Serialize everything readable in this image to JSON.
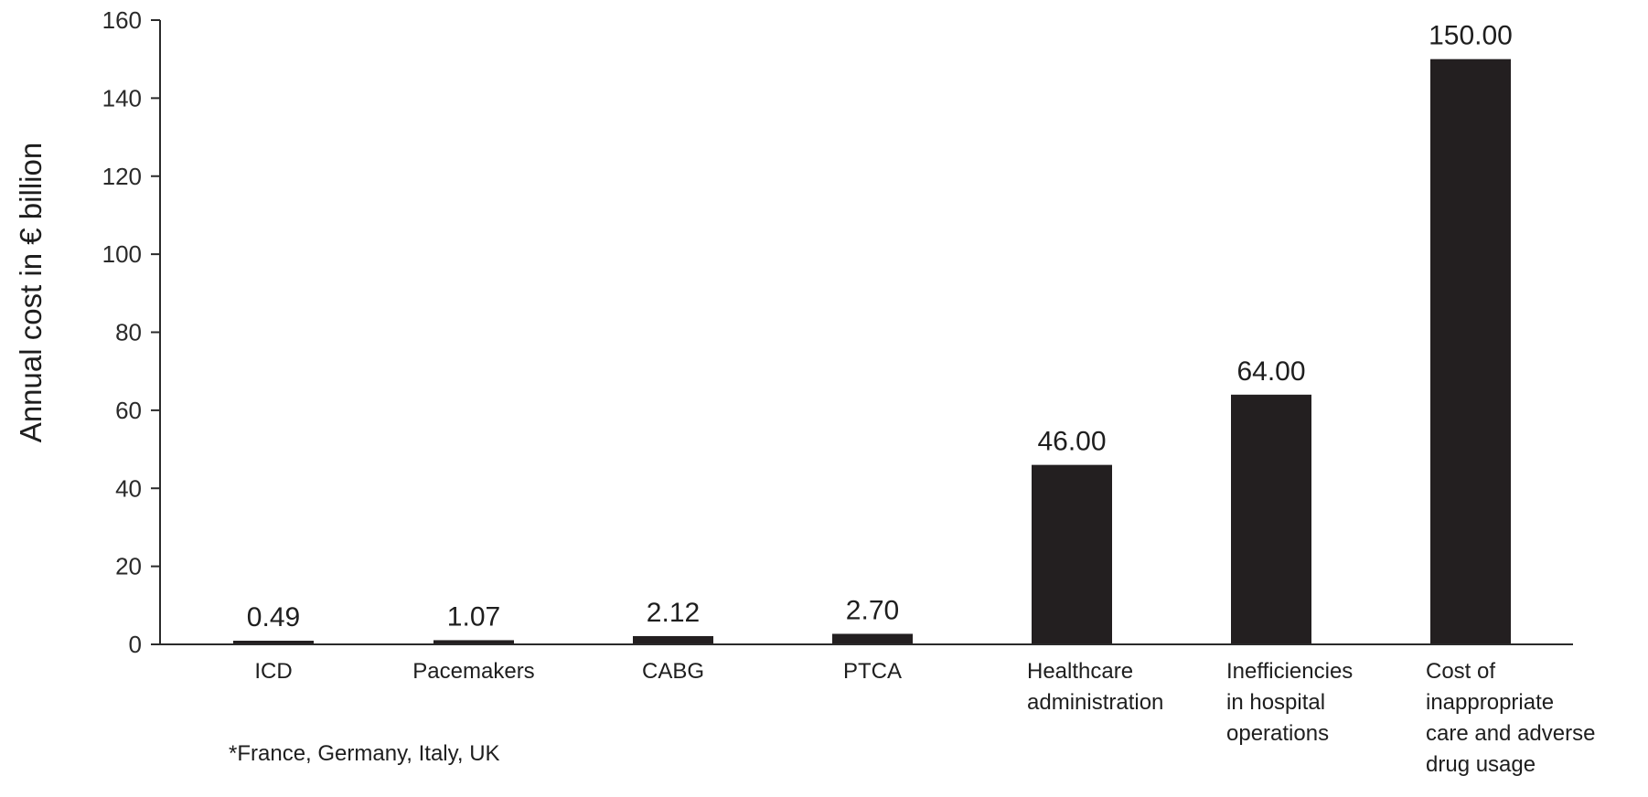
{
  "chart_data": {
    "type": "bar",
    "categories": [
      [
        "ICD"
      ],
      [
        "Pacemakers"
      ],
      [
        "CABG"
      ],
      [
        "PTCA"
      ],
      [
        "Healthcare",
        "administration"
      ],
      [
        "Inefficiencies",
        "in hospital",
        "operations"
      ],
      [
        "Cost of",
        "inappropriate",
        "care and adverse",
        "drug usage"
      ]
    ],
    "values": [
      0.49,
      1.07,
      2.12,
      2.7,
      46.0,
      64.0,
      150.0
    ],
    "data_labels": [
      "0.49",
      "1.07",
      "2.12",
      "2.70",
      "46.00",
      "64.00",
      "150.00"
    ],
    "ylabel": "Annual cost in € billion",
    "xlabel": "",
    "ylim": [
      0,
      160
    ],
    "yticks": [
      0,
      20,
      40,
      60,
      80,
      100,
      120,
      140,
      160
    ],
    "grid": false,
    "bar_color": "#231f20",
    "footnote": "*France, Germany, Italy, UK"
  }
}
